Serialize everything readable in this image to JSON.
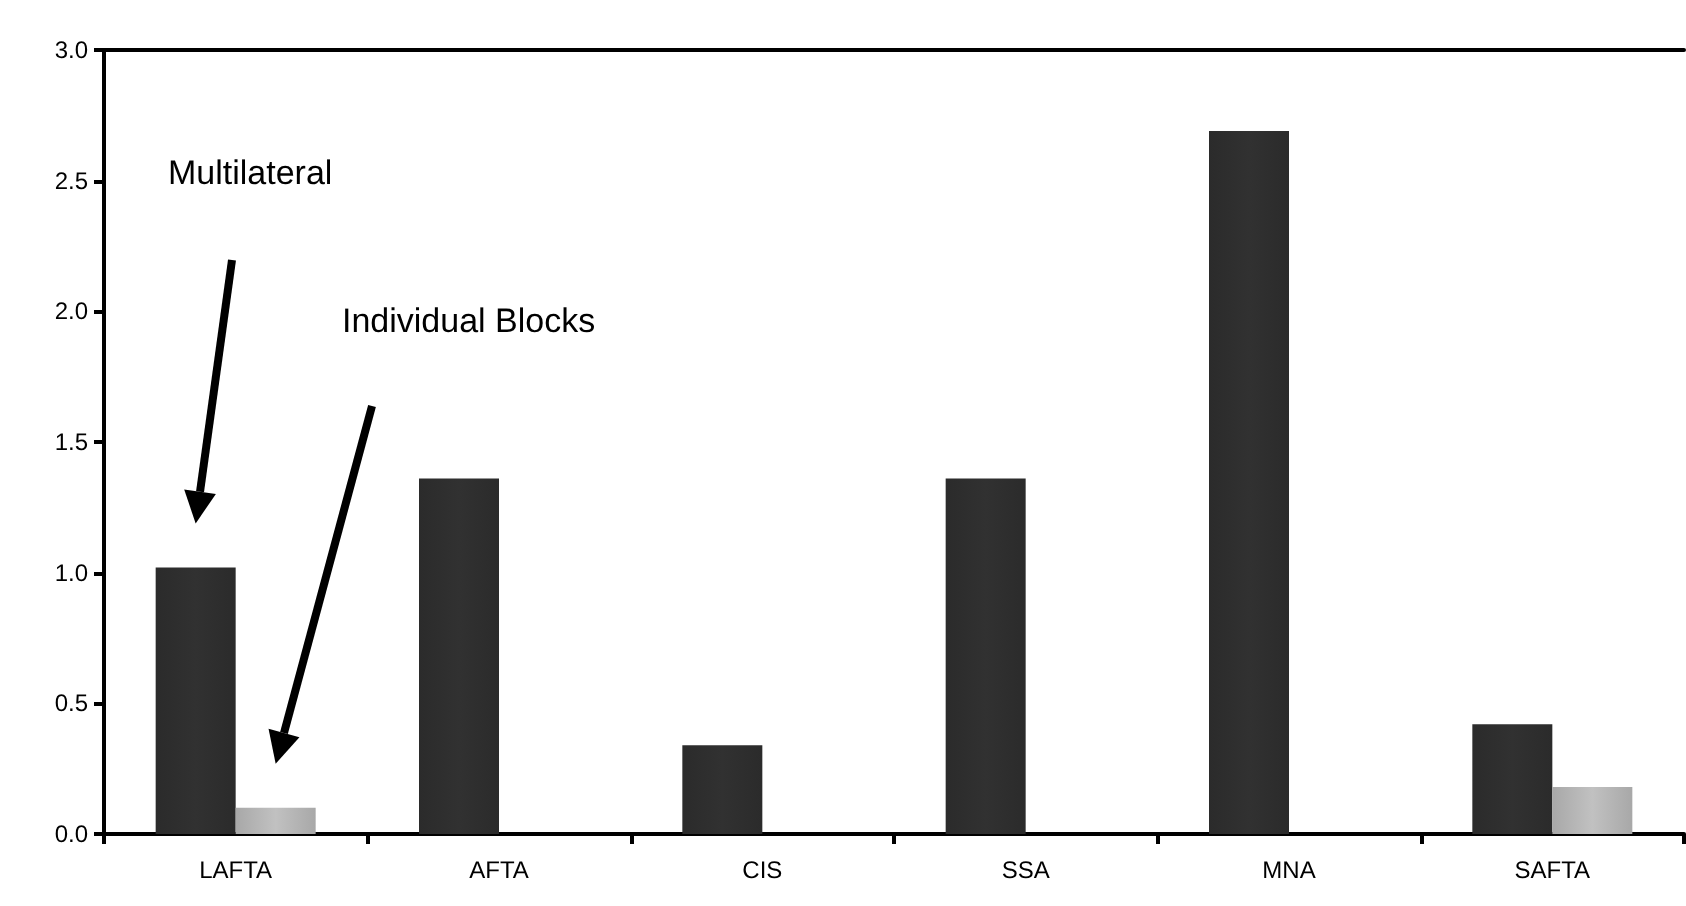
{
  "chart_data": {
    "type": "bar",
    "categories": [
      "LAFTA",
      "AFTA",
      "CIS",
      "SSA",
      "MNA",
      "SAFTA"
    ],
    "series": [
      {
        "color": "#2b2b2b",
        "values": [
          1.02,
          1.36,
          0.34,
          1.36,
          2.69,
          0.42
        ]
      },
      {
        "color": "#a8a8a8",
        "values": [
          0.1,
          null,
          null,
          null,
          null,
          0.18
        ]
      }
    ],
    "annotations": [
      "Multilateral",
      "Individual Blocks"
    ],
    "ylim": [
      0,
      3
    ],
    "yticks": [
      {
        "value": 0,
        "label": "0.0"
      },
      0.5,
      {
        "value": 1,
        "label": "1.0"
      },
      1.5,
      {
        "value": 2,
        "label": "2.0"
      },
      2.5,
      {
        "value": 3,
        "label": "3.0"
      }
    ],
    "grid": false
  }
}
